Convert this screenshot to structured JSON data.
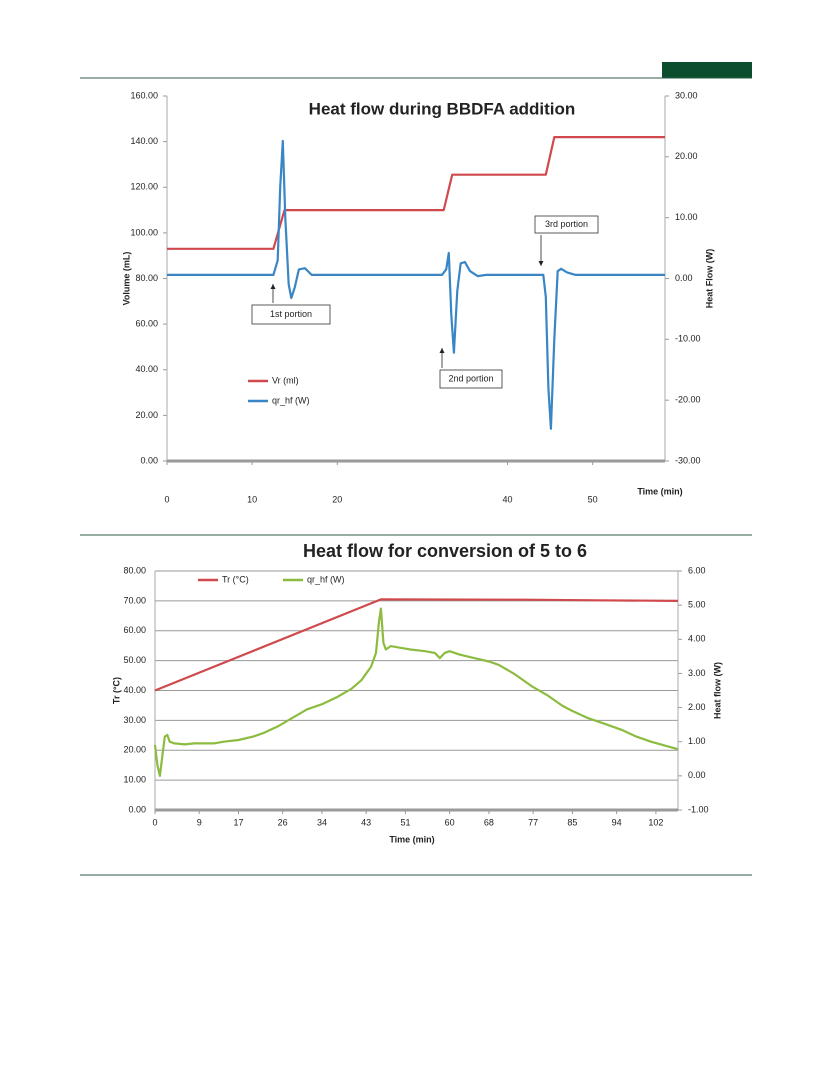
{
  "chart_data": [
    {
      "type": "line",
      "title": "Heat flow during BBDFA addition",
      "xlabel": "Time (min)",
      "ylabel": "Volume (mL)",
      "y2label": "Heat Flow (W)",
      "xlim": [
        0,
        58.5
      ],
      "xticks": [
        0,
        10,
        20,
        40,
        50
      ],
      "ylim": [
        0,
        160
      ],
      "yticks": [
        {
          "value": 0,
          "label": "0.00"
        },
        {
          "value": 20,
          "label": "20.00"
        },
        {
          "value": 40,
          "label": "40.00"
        },
        {
          "value": 60,
          "label": "60.00"
        },
        {
          "value": 80,
          "label": "80.00"
        },
        {
          "value": 100,
          "label": "100.00"
        },
        {
          "value": 120,
          "label": "120.00"
        },
        {
          "value": 140,
          "label": "140.00"
        },
        {
          "value": 160,
          "label": "160.00"
        }
      ],
      "y2lim": [
        -30,
        30
      ],
      "y2ticks": [
        {
          "value": -30,
          "label": "-30.00"
        },
        {
          "value": -20,
          "label": "-20.00"
        },
        {
          "value": -10,
          "label": "-10.00"
        },
        {
          "value": 0,
          "label": "0.00"
        },
        {
          "value": 10,
          "label": "10.00"
        },
        {
          "value": 20,
          "label": "20.00"
        },
        {
          "value": 30,
          "label": "30.00"
        }
      ],
      "grid": false,
      "legend": "lower left",
      "annotations": [
        "1st portion",
        "2nd portion",
        "3rd portion"
      ],
      "series": [
        {
          "name": "Vr (ml)",
          "color": "#d0494c",
          "x": [
            0,
            12.5,
            13.8,
            32.5,
            33.5,
            44.5,
            45.5,
            58.5
          ],
          "values": [
            93,
            93,
            110,
            110,
            125.5,
            125.5,
            142,
            142
          ]
        },
        {
          "name": "qr_hf (W)",
          "color": "#3a86c4",
          "axis": "y2",
          "x": [
            0,
            12.5,
            13,
            13.3,
            13.6,
            13.9,
            14.3,
            14.6,
            15,
            15.5,
            16.2,
            17,
            32.3,
            32.8,
            33.1,
            33.4,
            33.7,
            34.1,
            34.5,
            35,
            35.6,
            36.5,
            37.5,
            44.2,
            44.5,
            44.8,
            45.1,
            45.5,
            45.9,
            46.3,
            47,
            48,
            58.5
          ],
          "values": [
            0.6,
            0.6,
            3,
            15,
            22.6,
            10,
            -1,
            -3.2,
            -1.5,
            1.5,
            1.7,
            0.6,
            0.6,
            1.5,
            4.2,
            -6,
            -12.2,
            -2,
            2.5,
            2.7,
            1.2,
            0.4,
            0.6,
            0.6,
            -3,
            -18,
            -24.7,
            -10,
            1.2,
            1.6,
            1,
            0.6,
            0.6
          ]
        }
      ]
    },
    {
      "type": "line",
      "title": "Heat flow for conversion of 5 to 6",
      "xlabel": "Time (min)",
      "ylabel": "Tr (°C)",
      "y2label": "Heat flow (W)",
      "xlim": [
        0,
        106.5
      ],
      "xticks": [
        0,
        9,
        17,
        26,
        34,
        43,
        51,
        60,
        68,
        77,
        85,
        94,
        102
      ],
      "ylim": [
        0,
        80
      ],
      "yticks": [
        {
          "value": 0,
          "label": "0.00"
        },
        {
          "value": 10,
          "label": "10.00"
        },
        {
          "value": 20,
          "label": "20.00"
        },
        {
          "value": 30,
          "label": "30.00"
        },
        {
          "value": 40,
          "label": "40.00"
        },
        {
          "value": 50,
          "label": "50.00"
        },
        {
          "value": 60,
          "label": "60.00"
        },
        {
          "value": 70,
          "label": "70.00"
        },
        {
          "value": 80,
          "label": "80.00"
        }
      ],
      "y2lim": [
        -1,
        6
      ],
      "y2ticks": [
        {
          "value": -1,
          "label": "-1.00"
        },
        {
          "value": 0,
          "label": "0.00"
        },
        {
          "value": 1,
          "label": "1.00"
        },
        {
          "value": 2,
          "label": "2.00"
        },
        {
          "value": 3,
          "label": "3.00"
        },
        {
          "value": 4,
          "label": "4.00"
        },
        {
          "value": 5,
          "label": "5.00"
        },
        {
          "value": 6,
          "label": "6.00"
        }
      ],
      "grid": true,
      "legend": "upper left",
      "series": [
        {
          "name": "Tr (°C)",
          "color": "#d0494c",
          "x": [
            0,
            46,
            75,
            90,
            106.5
          ],
          "values": [
            40,
            70.5,
            70.4,
            70.2,
            70
          ]
        },
        {
          "name": "qr_hf (W)",
          "color": "#8cbc3f",
          "axis": "y2",
          "x": [
            0,
            0.5,
            1,
            1.5,
            2,
            2.5,
            3,
            4,
            6,
            8,
            10,
            12,
            14,
            17,
            20,
            22,
            25,
            28,
            31,
            34,
            37,
            40,
            42,
            44,
            45,
            45.6,
            46,
            46.5,
            47,
            48,
            50,
            52,
            55,
            57,
            58,
            59,
            60,
            62,
            65,
            68,
            70,
            73,
            77,
            80,
            83,
            85,
            88,
            92,
            95,
            98,
            101,
            104,
            106.5
          ],
          "values": [
            0.9,
            0.3,
            0,
            0.6,
            1.15,
            1.2,
            1,
            0.95,
            0.92,
            0.95,
            0.95,
            0.95,
            1,
            1.05,
            1.15,
            1.25,
            1.45,
            1.7,
            1.95,
            2.1,
            2.3,
            2.55,
            2.8,
            3.2,
            3.6,
            4.5,
            4.9,
            3.9,
            3.7,
            3.8,
            3.75,
            3.7,
            3.65,
            3.6,
            3.45,
            3.6,
            3.65,
            3.55,
            3.45,
            3.35,
            3.25,
            3,
            2.6,
            2.35,
            2.05,
            1.9,
            1.7,
            1.5,
            1.35,
            1.15,
            1,
            0.88,
            0.78
          ]
        }
      ]
    }
  ]
}
